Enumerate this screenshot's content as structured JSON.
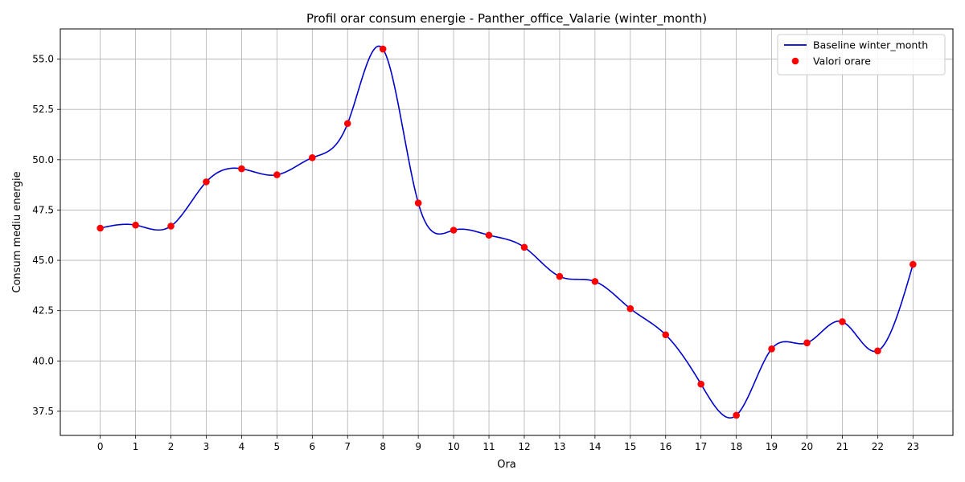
{
  "chart_data": {
    "type": "line",
    "title": "Profil orar consum energie - Panther_office_Valarie (winter_month)",
    "xlabel": "Ora",
    "ylabel": "Consum mediu energie",
    "x": [
      0,
      1,
      2,
      3,
      4,
      5,
      6,
      7,
      8,
      9,
      10,
      11,
      12,
      13,
      14,
      15,
      16,
      17,
      18,
      19,
      20,
      21,
      22,
      23
    ],
    "x_tick_labels": [
      "0",
      "1",
      "2",
      "3",
      "4",
      "5",
      "6",
      "7",
      "8",
      "9",
      "10",
      "11",
      "12",
      "13",
      "14",
      "15",
      "16",
      "17",
      "18",
      "19",
      "20",
      "21",
      "22",
      "23"
    ],
    "xlim": [
      -1.13,
      24.13
    ],
    "y_ticks": [
      37.5,
      40.0,
      42.5,
      45.0,
      47.5,
      50.0,
      52.5,
      55.0
    ],
    "y_tick_labels": [
      "37.5",
      "40.0",
      "42.5",
      "45.0",
      "47.5",
      "50.0",
      "52.5",
      "55.0"
    ],
    "ylim": [
      36.3,
      56.5
    ],
    "grid": true,
    "legend_position": "top-right",
    "series": [
      {
        "name": "Baseline winter_month",
        "kind": "line",
        "color": "#0000cc",
        "interpolation": "smooth",
        "values": [
          46.6,
          46.75,
          46.7,
          48.9,
          49.55,
          49.25,
          50.1,
          51.8,
          55.5,
          47.85,
          46.5,
          46.25,
          45.65,
          44.2,
          43.95,
          42.6,
          41.3,
          38.85,
          37.3,
          40.6,
          40.9,
          41.95,
          40.5,
          44.8
        ]
      },
      {
        "name": "Valori orare",
        "kind": "scatter",
        "color": "#ff0000",
        "values": [
          46.6,
          46.75,
          46.7,
          48.9,
          49.55,
          49.25,
          50.1,
          51.8,
          55.5,
          47.85,
          46.5,
          46.25,
          45.65,
          44.2,
          43.95,
          42.6,
          41.3,
          38.85,
          37.3,
          40.6,
          40.9,
          41.95,
          40.5,
          44.8
        ]
      }
    ]
  }
}
